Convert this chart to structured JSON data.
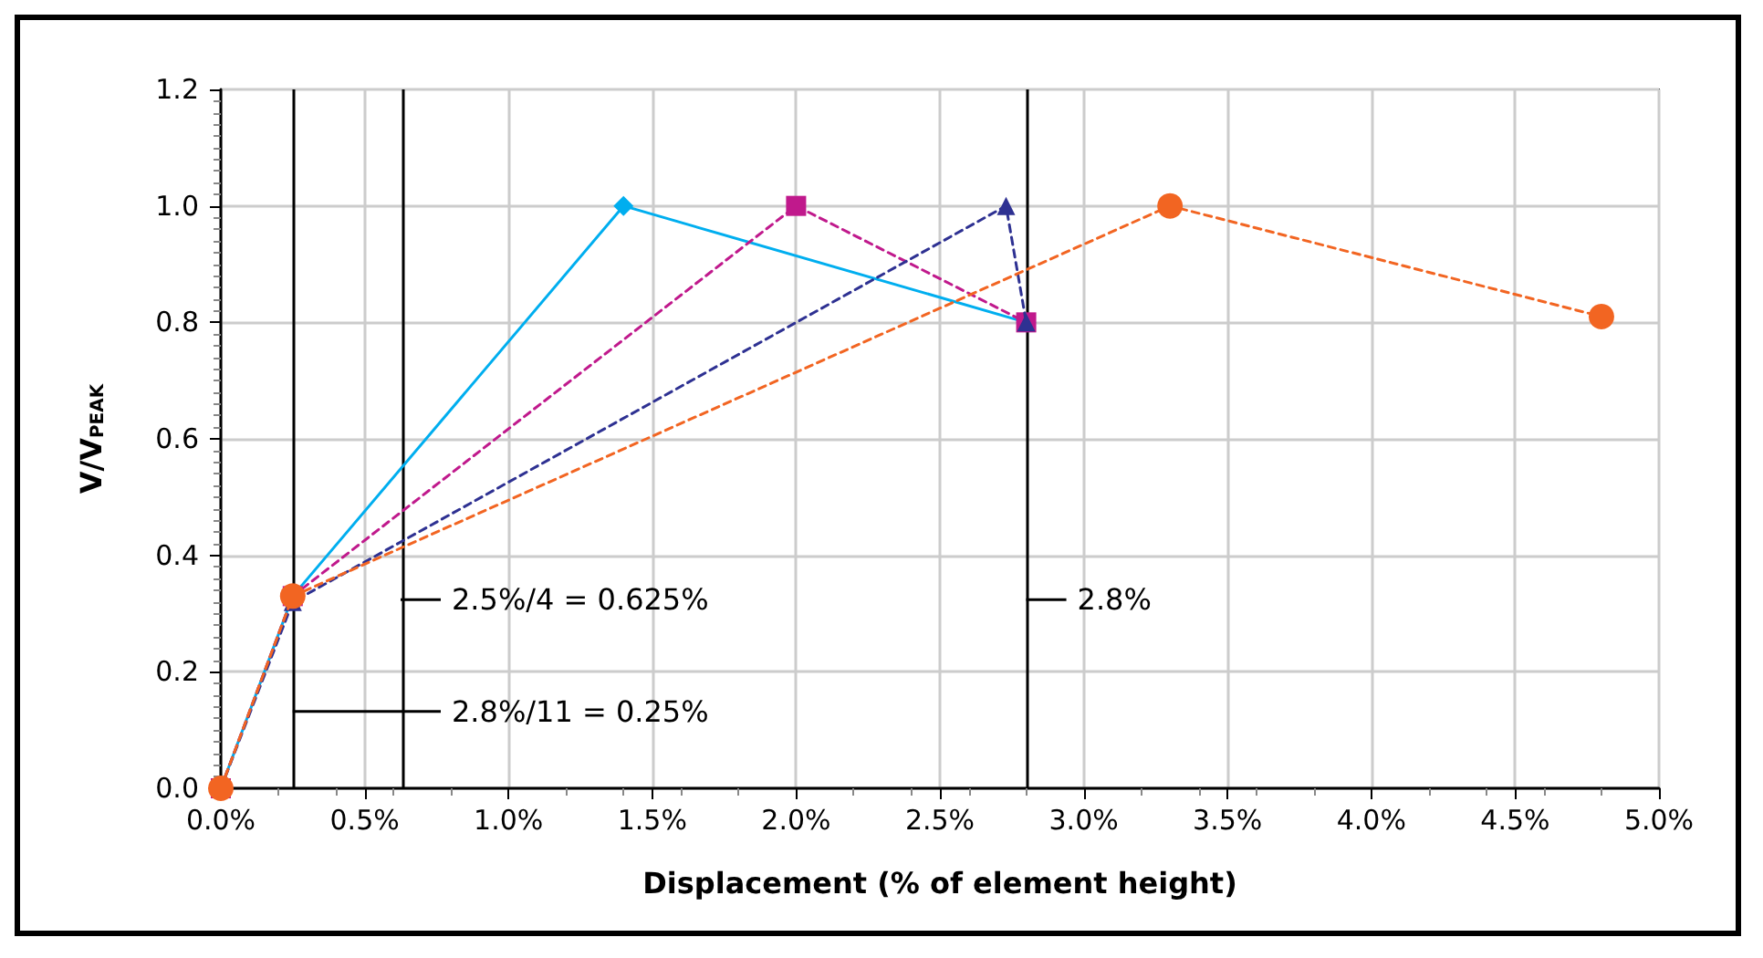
{
  "chart_data": {
    "type": "line",
    "xlabel": "Displacement (% of element height)",
    "ylabel": "V/V$_{PEAK}$",
    "series": [
      {
        "color": "#00aeef",
        "marker": "diamond",
        "line_style": "solid",
        "x": [
          0,
          0.25,
          1.4,
          2.8
        ],
        "values": [
          0,
          0.33,
          1.0,
          0.8
        ]
      },
      {
        "color": "#c0198c",
        "marker": "square",
        "line_style": "dashed",
        "x": [
          0,
          0.25,
          2.0,
          2.8
        ],
        "values": [
          0,
          0.33,
          1.0,
          0.8
        ]
      },
      {
        "color": "#2e3192",
        "marker": "triangle",
        "line_style": "dashed",
        "x": [
          0,
          0.25,
          2.73,
          2.8
        ],
        "values": [
          0,
          0.32,
          1.0,
          0.8
        ]
      },
      {
        "color": "#f26522",
        "marker": "circle",
        "line_style": "dashed",
        "x": [
          0,
          0.25,
          3.3,
          4.8
        ],
        "values": [
          0,
          0.33,
          1.0,
          0.81
        ]
      }
    ],
    "xlim": [
      0,
      5
    ],
    "xticks": [
      {
        "value": 0,
        "label": "0.0%"
      },
      {
        "value": 0.5,
        "label": "0.5%"
      },
      {
        "value": 1,
        "label": "1.0%"
      },
      {
        "value": 1.5,
        "label": "1.5%"
      },
      {
        "value": 2,
        "label": "2.0%"
      },
      {
        "value": 2.5,
        "label": "2.5%"
      },
      {
        "value": 3,
        "label": "3.0%"
      },
      {
        "value": 3.5,
        "label": "3.5%"
      },
      {
        "value": 4,
        "label": "4.0%"
      },
      {
        "value": 4.5,
        "label": "4.5%"
      },
      {
        "value": 5,
        "label": "5.0%"
      }
    ],
    "ylim": [
      0,
      1.2
    ],
    "yticks": [
      {
        "value": 0,
        "label": "0.0"
      },
      {
        "value": 0.2,
        "label": "0.2"
      },
      {
        "value": 0.4,
        "label": "0.4"
      },
      {
        "value": 0.6,
        "label": "0.6"
      },
      {
        "value": 0.8,
        "label": "0.8"
      },
      {
        "value": 1,
        "label": "1.0"
      },
      {
        "value": 1.2,
        "label": "1.2"
      }
    ],
    "ref_lines": [
      {
        "axis": "x",
        "value": 0.25,
        "label": "2.8%/11 = 0.25%",
        "color": "#000000"
      },
      {
        "axis": "x",
        "value": 0.625,
        "label": "2.5%/4 = 0.625%",
        "color": "#000000"
      },
      {
        "axis": "x",
        "value": 2.8,
        "label": "2.8%",
        "color": "#000000"
      }
    ],
    "grid": true
  }
}
